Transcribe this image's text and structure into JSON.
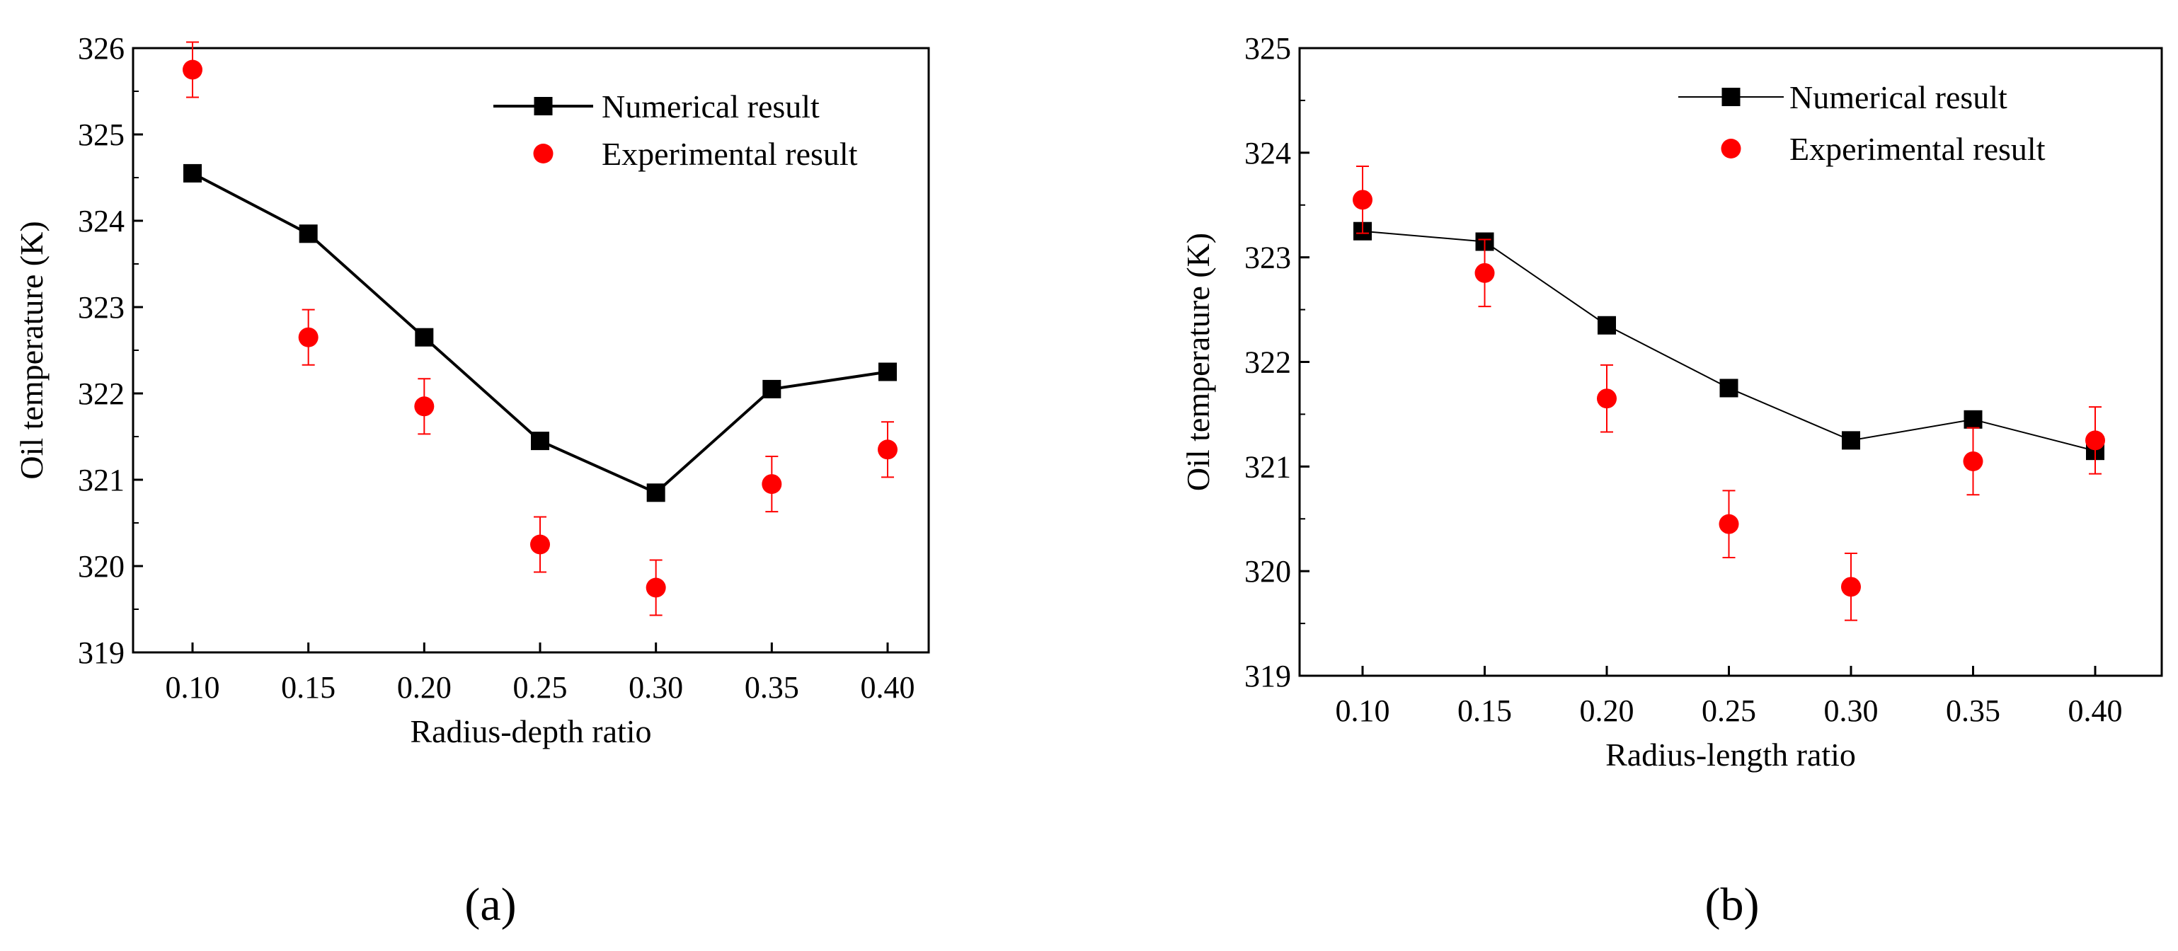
{
  "figure": {
    "panels": [
      "(a)",
      "(b)"
    ]
  },
  "colors": {
    "numerical": "#000000",
    "experimental": "#ff0000",
    "axis": "#000000"
  },
  "chart_data": [
    {
      "type": "scatter",
      "panel": "(a)",
      "title": "",
      "xlabel": "Radius-depth ratio",
      "ylabel": "Oil temperature (K)",
      "x": [
        0.1,
        0.15,
        0.2,
        0.25,
        0.3,
        0.35,
        0.4
      ],
      "xtick_labels": [
        "0.10",
        "0.15",
        "0.20",
        "0.25",
        "0.30",
        "0.35",
        "0.40"
      ],
      "ylim": [
        319,
        326
      ],
      "yticks": [
        319,
        320,
        321,
        322,
        323,
        324,
        325,
        326
      ],
      "ytick_labels": [
        "319",
        "320",
        "321",
        "322",
        "323",
        "324",
        "325",
        "326"
      ],
      "legend_position": "top-right",
      "series": [
        {
          "name": "Numerical result",
          "type": "line",
          "marker": "square",
          "values": [
            324.55,
            323.85,
            322.65,
            321.45,
            320.85,
            322.05,
            322.25
          ]
        },
        {
          "name": "Experimental result",
          "type": "scatter",
          "marker": "circle",
          "values": [
            325.75,
            322.65,
            321.85,
            320.25,
            319.75,
            320.95,
            321.35
          ],
          "error": [
            0.32,
            0.32,
            0.32,
            0.32,
            0.32,
            0.32,
            0.32
          ]
        }
      ]
    },
    {
      "type": "scatter",
      "panel": "(b)",
      "title": "",
      "xlabel": "Radius-length ratio",
      "ylabel": "Oil temperature (K)",
      "x": [
        0.1,
        0.15,
        0.2,
        0.25,
        0.3,
        0.35,
        0.4
      ],
      "xtick_labels": [
        "0.10",
        "0.15",
        "0.20",
        "0.25",
        "0.30",
        "0.35",
        "0.40"
      ],
      "ylim": [
        319,
        325
      ],
      "yticks": [
        319,
        320,
        321,
        322,
        323,
        324,
        325
      ],
      "ytick_labels": [
        "319",
        "320",
        "321",
        "322",
        "323",
        "324",
        "325"
      ],
      "legend_position": "top-right",
      "series": [
        {
          "name": "Numerical result",
          "type": "line",
          "marker": "square",
          "values": [
            323.25,
            323.15,
            322.35,
            321.75,
            321.25,
            321.45,
            321.15
          ]
        },
        {
          "name": "Experimental result",
          "type": "scatter",
          "marker": "circle",
          "values": [
            323.55,
            322.85,
            321.65,
            320.45,
            319.85,
            321.05,
            321.25
          ],
          "error": [
            0.32,
            0.32,
            0.32,
            0.32,
            0.32,
            0.32,
            0.32
          ]
        }
      ]
    }
  ]
}
